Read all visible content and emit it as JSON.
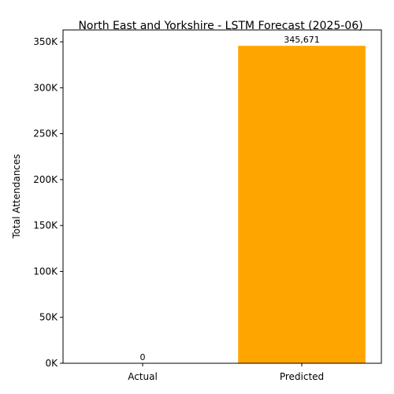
{
  "chart_data": {
    "type": "bar",
    "title": "North East and Yorkshire - LSTM Forecast (2025-06)",
    "xlabel": "",
    "ylabel": "Total Attendances",
    "categories": [
      "Actual",
      "Predicted"
    ],
    "values": [
      0,
      345671
    ],
    "data_labels": [
      "0",
      "345,671"
    ],
    "colors": [
      "#1f77b4",
      "#ffa500"
    ],
    "ylim": [
      0,
      362955
    ],
    "yticks": [
      0,
      50000,
      100000,
      150000,
      200000,
      250000,
      300000,
      350000
    ],
    "ytick_labels": [
      "0K",
      "50K",
      "100K",
      "150K",
      "200K",
      "250K",
      "300K",
      "350K"
    ],
    "grid": false,
    "legend": "none"
  }
}
